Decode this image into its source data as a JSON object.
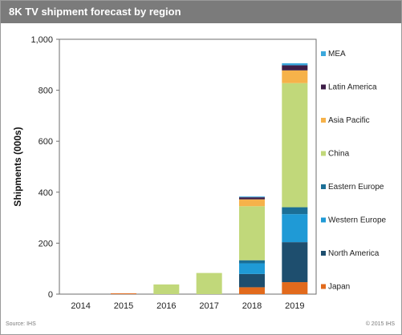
{
  "header": {
    "title": "8K TV shipment forecast by region"
  },
  "footer": {
    "source": "Source: IHS",
    "copyright": "© 2015 IHS"
  },
  "colors": {
    "Japan": "#e26a1c",
    "North America": "#1e4e6e",
    "Western Europe": "#1f9ad6",
    "Eastern Europe": "#1b6f96",
    "China": "#c1d87a",
    "Asia Pacific": "#f6b24a",
    "Latin America": "#3d1d47",
    "MEA": "#3ca8dc"
  },
  "chart_data": {
    "type": "bar",
    "stacked": true,
    "title": "8K TV shipment forecast by region",
    "xlabel": "",
    "ylabel": "Shipments (000s)",
    "ylim": [
      0,
      1000
    ],
    "yticks": [
      0,
      200,
      400,
      600,
      800,
      1000
    ],
    "ytick_labels": [
      "0",
      "200",
      "400",
      "600",
      "800",
      "1,000"
    ],
    "categories": [
      "2014",
      "2015",
      "2016",
      "2017",
      "2018",
      "2019"
    ],
    "grid": false,
    "legend_position": "right",
    "legend_order": [
      "MEA",
      "Latin America",
      "Asia Pacific",
      "China",
      "Eastern Europe",
      "Western Europe",
      "North America",
      "Japan"
    ],
    "series": [
      {
        "name": "Japan",
        "values": [
          0,
          3,
          0,
          0,
          27,
          47
        ]
      },
      {
        "name": "North America",
        "values": [
          0,
          0,
          0,
          0,
          52,
          157
        ]
      },
      {
        "name": "Western Europe",
        "values": [
          0,
          0,
          0,
          0,
          42,
          110
        ]
      },
      {
        "name": "Eastern Europe",
        "values": [
          0,
          0,
          0,
          0,
          12,
          27
        ]
      },
      {
        "name": "China",
        "values": [
          0,
          0,
          38,
          83,
          212,
          487
        ]
      },
      {
        "name": "Asia Pacific",
        "values": [
          0,
          0,
          0,
          0,
          27,
          50
        ]
      },
      {
        "name": "Latin America",
        "values": [
          0,
          0,
          0,
          0,
          8,
          20
        ]
      },
      {
        "name": "MEA",
        "values": [
          0,
          0,
          0,
          0,
          3,
          8
        ]
      }
    ]
  }
}
